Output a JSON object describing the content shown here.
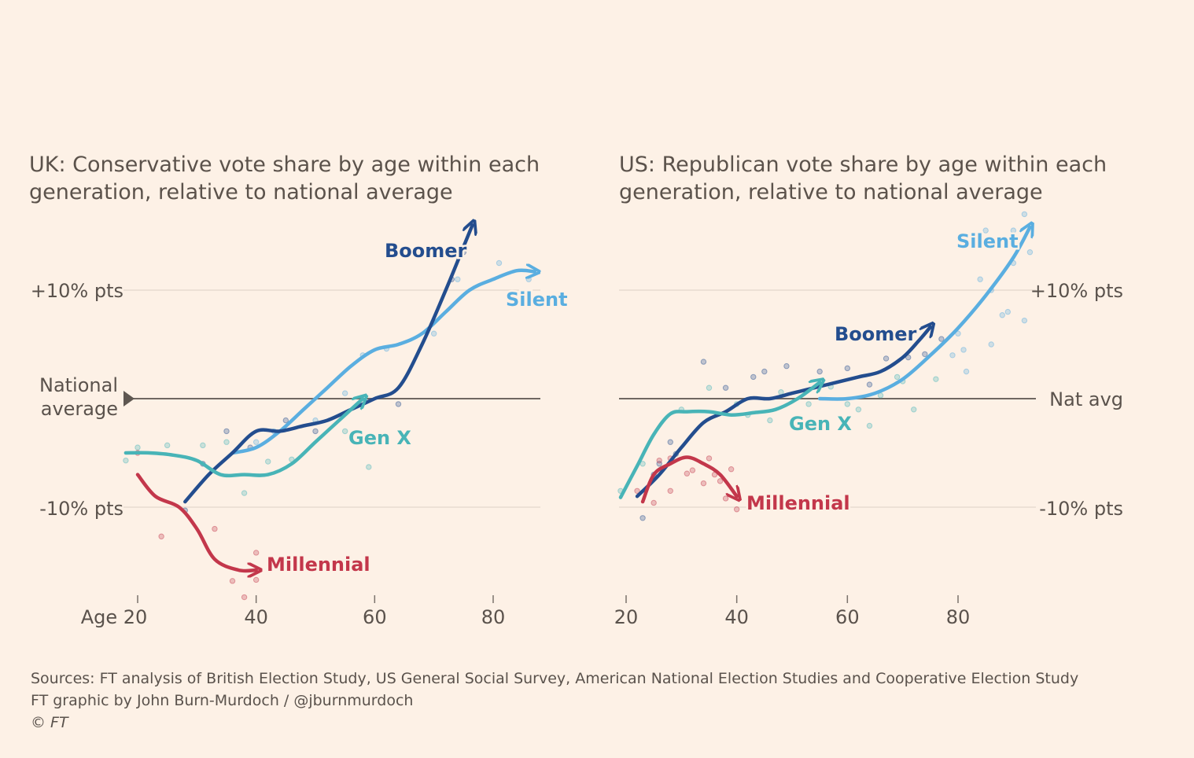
{
  "footer": {
    "sources": "Sources: FT analysis of British Election Study, US General Social Survey, American National Election Studies and Cooperative Election Study",
    "credit": "FT graphic by John Burn-Murdoch / @jburnmurdoch",
    "copyright": "© FT"
  },
  "colors": {
    "background": "#fdf1e6",
    "Silent": "#5aaee0",
    "Boomer": "#234d8e",
    "Gen X": "#48b4b7",
    "Millennial": "#c3374b"
  },
  "chart_data": [
    {
      "type": "line",
      "title": "UK: Conservative vote share by age within each generation, relative to national average",
      "x_tick_labels": [
        "Age 20",
        "40",
        "60",
        "80"
      ],
      "x_ticks": [
        20,
        40,
        60,
        80
      ],
      "xlim": [
        18,
        88
      ],
      "ylim": [
        -19,
        18
      ],
      "y_gridlines": [
        10,
        0,
        -10
      ],
      "y_tick_labels": [
        "+10% pts",
        "National average",
        "-10% pts"
      ],
      "y_axis_side": "left",
      "baseline_label": "National average",
      "series": [
        {
          "name": "Silent",
          "x": [
            36,
            40,
            44,
            48,
            52,
            56,
            60,
            64,
            68,
            72,
            76,
            80,
            84,
            87
          ],
          "y": [
            -5,
            -4.5,
            -3,
            -1,
            1,
            3,
            4.5,
            5,
            6,
            8,
            10,
            11,
            11.8,
            11.7
          ]
        },
        {
          "name": "Boomer",
          "x": [
            28,
            32,
            36,
            40,
            44,
            48,
            52,
            56,
            60,
            64,
            68,
            72,
            75,
            76.5
          ],
          "y": [
            -9.5,
            -7,
            -5,
            -3,
            -3,
            -2.5,
            -2,
            -1,
            0,
            1,
            5,
            10,
            14,
            16
          ]
        },
        {
          "name": "Gen X",
          "x": [
            18,
            22,
            26,
            30,
            34,
            38,
            42,
            46,
            50,
            54,
            58
          ],
          "y": [
            -5,
            -5,
            -5.2,
            -5.7,
            -7,
            -7,
            -7,
            -6,
            -4,
            -2,
            0
          ]
        },
        {
          "name": "Millennial",
          "x": [
            20,
            23,
            27,
            30,
            33,
            37,
            40
          ],
          "y": [
            -7,
            -9,
            -10,
            -12,
            -14.8,
            -15.8,
            -15.8
          ]
        }
      ],
      "scatter_points": {
        "Silent": [
          [
            40,
            -4
          ],
          [
            43,
            -3
          ],
          [
            50,
            -2
          ],
          [
            55,
            0.5
          ],
          [
            58,
            4
          ],
          [
            62,
            4.6
          ],
          [
            70,
            6
          ],
          [
            74,
            11
          ],
          [
            81,
            12.5
          ],
          [
            86,
            11
          ]
        ],
        "Boomer": [
          [
            28,
            -10.3
          ],
          [
            31,
            -6
          ],
          [
            35,
            -3
          ],
          [
            39,
            -4.5
          ],
          [
            45,
            -2
          ],
          [
            50,
            -3
          ],
          [
            64,
            -0.5
          ],
          [
            73,
            11
          ],
          [
            75,
            13.5
          ]
        ],
        "Gen X": [
          [
            18,
            -5.7
          ],
          [
            20,
            -4.5
          ],
          [
            25,
            -4.3
          ],
          [
            31,
            -4.3
          ],
          [
            35,
            -4
          ],
          [
            38,
            -8.7
          ],
          [
            42,
            -5.8
          ],
          [
            46,
            -5.6
          ],
          [
            55,
            -3
          ],
          [
            59,
            -6.3
          ]
        ],
        "Millennial": [
          [
            20,
            -5
          ],
          [
            24,
            -12.7
          ],
          [
            33,
            -12
          ],
          [
            36,
            -16.8
          ],
          [
            38,
            -18.3
          ],
          [
            40,
            -14.2
          ],
          [
            40,
            -16.7
          ]
        ]
      }
    },
    {
      "type": "line",
      "title": "US: Republican vote share by age within each generation, relative to national average",
      "x_tick_labels": [
        "20",
        "40",
        "60",
        "80"
      ],
      "x_ticks": [
        20,
        40,
        60,
        80
      ],
      "xlim": [
        19,
        94
      ],
      "ylim": [
        -19,
        18
      ],
      "y_gridlines": [
        10,
        0,
        -10
      ],
      "y_tick_labels": [
        "+10% pts",
        "Nat avg",
        "-10% pts"
      ],
      "y_axis_side": "right",
      "baseline_label": "Nat avg",
      "series": [
        {
          "name": "Silent",
          "x": [
            55,
            60,
            65,
            70,
            75,
            80,
            85,
            90,
            93
          ],
          "y": [
            0,
            0,
            0.5,
            1.8,
            4,
            6.5,
            9.5,
            13,
            15.8
          ]
        },
        {
          "name": "Boomer",
          "x": [
            22,
            26,
            30,
            34,
            38,
            42,
            46,
            50,
            54,
            58,
            62,
            66,
            70,
            73,
            75
          ],
          "y": [
            -9,
            -7,
            -4.5,
            -2.2,
            -1.2,
            0,
            0,
            0.5,
            1,
            1.5,
            2,
            2.5,
            3.8,
            5.4,
            6.6
          ]
        },
        {
          "name": "Gen X",
          "x": [
            19,
            22,
            25,
            28,
            31,
            35,
            39,
            43,
            47,
            51,
            55
          ],
          "y": [
            -9.1,
            -6.2,
            -3.3,
            -1.4,
            -1.2,
            -1.2,
            -1.5,
            -1.3,
            -1,
            0,
            1.5
          ]
        },
        {
          "name": "Millennial",
          "x": [
            23,
            25,
            28,
            31,
            34,
            37,
            40
          ],
          "y": [
            -9.5,
            -7,
            -6,
            -5.4,
            -6,
            -7,
            -9
          ]
        }
      ],
      "scatter_points": {
        "Silent": [
          [
            84,
            11
          ],
          [
            86,
            10
          ],
          [
            88,
            7.7
          ],
          [
            90,
            12.5
          ],
          [
            89,
            8
          ],
          [
            92,
            17
          ],
          [
            92,
            7.2
          ],
          [
            93,
            13.5
          ],
          [
            85,
            15.5
          ],
          [
            90,
            15.5
          ],
          [
            80,
            6
          ],
          [
            81,
            4.5
          ],
          [
            79,
            4
          ],
          [
            81.5,
            2.5
          ],
          [
            86,
            5
          ]
        ],
        "Boomer": [
          [
            28,
            -4
          ],
          [
            34,
            3.4
          ],
          [
            38,
            1
          ],
          [
            43,
            2
          ],
          [
            45,
            2.5
          ],
          [
            49,
            3
          ],
          [
            55,
            2.5
          ],
          [
            60,
            2.8
          ],
          [
            64,
            1.3
          ],
          [
            67,
            3.7
          ],
          [
            71,
            3.8
          ],
          [
            74,
            4.1
          ],
          [
            77,
            5.5
          ],
          [
            23,
            -11
          ],
          [
            25,
            -7
          ],
          [
            26,
            -6
          ],
          [
            29,
            -5.1
          ]
        ],
        "Gen X": [
          [
            19,
            -8.5
          ],
          [
            23,
            -6
          ],
          [
            30,
            -1
          ],
          [
            35,
            1
          ],
          [
            40,
            -0.5
          ],
          [
            42,
            -1.5
          ],
          [
            46,
            -2
          ],
          [
            48,
            0.6
          ],
          [
            53,
            -0.5
          ],
          [
            57,
            1.1
          ],
          [
            60,
            -0.5
          ],
          [
            62,
            -1
          ],
          [
            64,
            -2.5
          ],
          [
            66,
            0.3
          ],
          [
            69,
            2
          ],
          [
            70,
            1.6
          ],
          [
            72,
            -1
          ],
          [
            76,
            1.8
          ]
        ],
        "Millennial": [
          [
            22,
            -8.5
          ],
          [
            25,
            -9.6
          ],
          [
            28,
            -8.5
          ],
          [
            32,
            -6.6
          ],
          [
            35,
            -5.5
          ],
          [
            37,
            -7.6
          ],
          [
            38,
            -9.2
          ],
          [
            40,
            -10.2
          ],
          [
            39,
            -6.5
          ],
          [
            36,
            -7
          ],
          [
            34,
            -7.8
          ],
          [
            31,
            -6.9
          ],
          [
            28,
            -5.5
          ],
          [
            26,
            -5.7
          ]
        ]
      }
    }
  ]
}
